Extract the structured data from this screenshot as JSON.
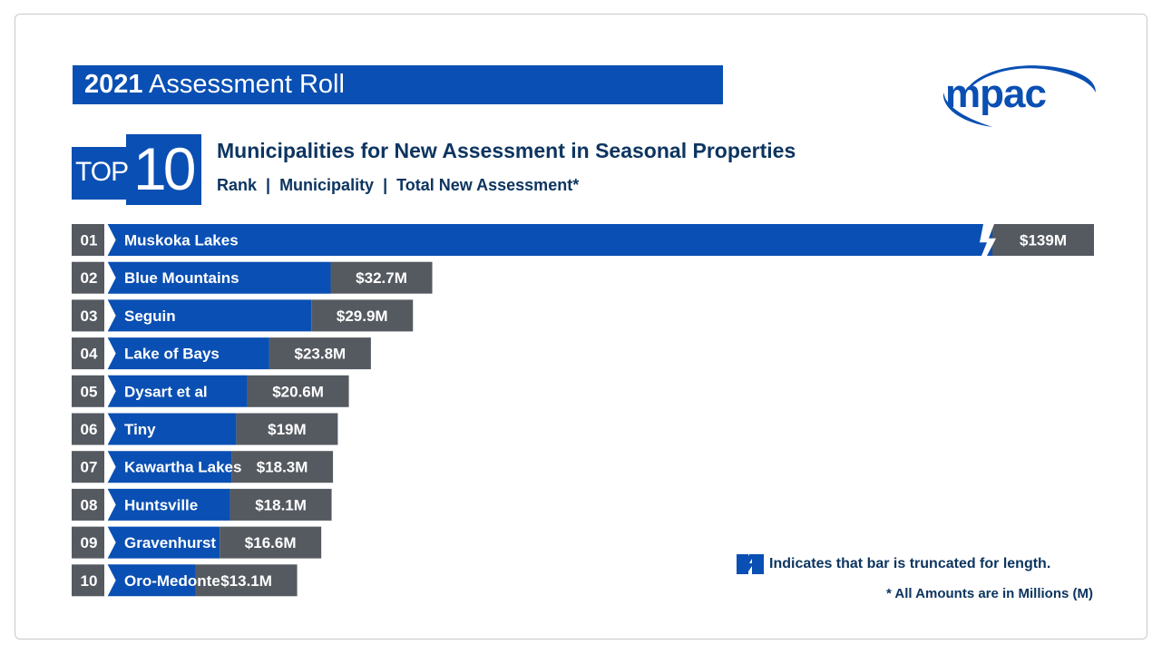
{
  "header": {
    "year": "2021",
    "title_rest": " Assessment Roll"
  },
  "logo": {
    "text": "mpac"
  },
  "badge": {
    "top": "TOP",
    "num": "10"
  },
  "colors": {
    "brand": "#0a4fb3",
    "value_box": "#555a61",
    "rank_box": "#555a61",
    "text_dark": "#0d3560"
  },
  "chart_data": {
    "type": "bar",
    "title": "Municipalities for New Assessment in Seasonal Properties",
    "subtitle_parts": [
      "Rank",
      "Municipality",
      "Total New Assessment*"
    ],
    "orientation": "horizontal",
    "unit": "M",
    "max_display_value": 42,
    "ranks": [
      "01",
      "02",
      "03",
      "04",
      "05",
      "06",
      "07",
      "08",
      "09",
      "10"
    ],
    "categories": [
      "Muskoka Lakes",
      "Blue Mountains",
      "Seguin",
      "Lake of Bays",
      "Dysart et al",
      "Tiny",
      "Kawartha Lakes",
      "Huntsville",
      "Gravenhurst",
      "Oro-Medonte"
    ],
    "values": [
      139,
      32.7,
      29.9,
      23.8,
      20.6,
      19,
      18.3,
      18.1,
      16.6,
      13.1
    ],
    "value_labels": [
      "$139M",
      "$32.7M",
      "$29.9M",
      "$23.8M",
      "$20.6M",
      "$19M",
      "$18.3M",
      "$18.1M",
      "$16.6M",
      "$13.1M"
    ],
    "truncated": [
      true,
      false,
      false,
      false,
      false,
      false,
      false,
      false,
      false,
      false
    ]
  },
  "legend": {
    "truncated_note": "Indicates that bar is truncated for length.",
    "footnote": "* All Amounts are in Millions (M)"
  }
}
